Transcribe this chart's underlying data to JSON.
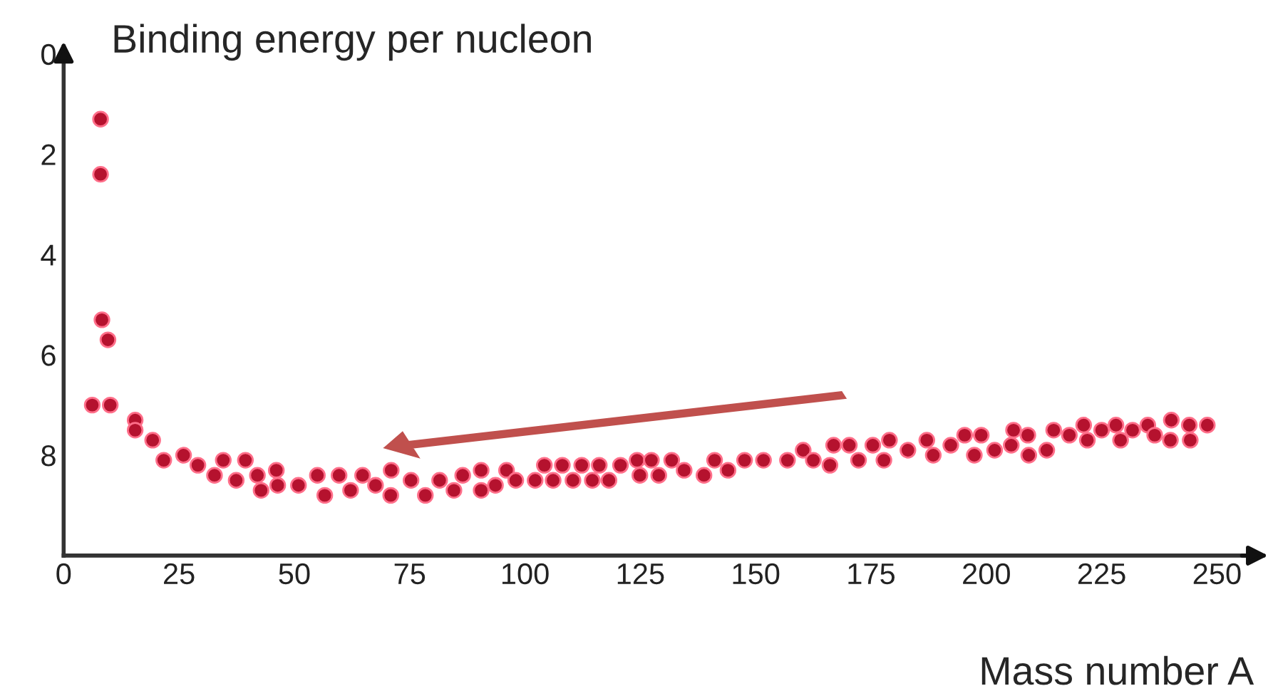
{
  "chart_data": {
    "type": "scatter",
    "xlabel": "Mass number A",
    "ylabel": "Binding energy per nucleon",
    "xlim": [
      0,
      258
    ],
    "xticks": [
      0,
      25,
      50,
      75,
      100,
      125,
      150,
      175,
      200,
      225,
      250
    ],
    "ylim": [
      10,
      0
    ],
    "yticks": [
      0,
      2,
      4,
      6,
      8
    ],
    "marker": "circle",
    "grid": false,
    "legend": false,
    "series": [
      {
        "color": "#b5122e",
        "x": [
          8,
          8,
          8.3,
          9.6,
          6.2,
          10.1,
          15.5,
          15.5,
          19.3,
          21.7,
          26,
          29.1,
          32.7,
          34.6,
          37.4,
          39.4,
          42,
          42.8,
          46.1,
          46.4,
          50.9,
          55,
          56.6,
          59.7,
          62.2,
          64.8,
          67.6,
          70.9,
          71,
          75.3,
          78.4,
          81.5,
          84.6,
          86.5,
          90.5,
          90.5,
          93.6,
          96,
          98,
          102.2,
          104.2,
          106.1,
          108.1,
          110.4,
          112.3,
          114.6,
          116.1,
          118.2,
          120.7,
          124.3,
          124.9,
          127.4,
          129,
          131.8,
          134.5,
          138.8,
          141.1,
          144,
          147.6,
          151.7,
          156.9,
          160.3,
          162.5,
          166.1,
          166.9,
          170.3,
          172.3,
          175.4,
          177.8,
          179,
          183,
          187.1,
          188.5,
          192.3,
          195.3,
          197.4,
          198.9,
          201.8,
          205.4,
          205.9,
          209,
          209.2,
          213.1,
          214.6,
          218,
          221.1,
          221.9,
          225,
          228.1,
          229.1,
          231.7,
          235,
          236.5,
          240.1,
          239.9,
          244,
          244.2,
          247.9
        ],
        "values": [
          1.3,
          2.4,
          5.3,
          5.7,
          7.0,
          7.0,
          7.3,
          7.5,
          7.7,
          8.1,
          8.0,
          8.2,
          8.4,
          8.1,
          8.5,
          8.1,
          8.4,
          8.7,
          8.3,
          8.6,
          8.6,
          8.4,
          8.8,
          8.4,
          8.7,
          8.4,
          8.6,
          8.8,
          8.3,
          8.5,
          8.8,
          8.5,
          8.7,
          8.4,
          8.3,
          8.7,
          8.6,
          8.3,
          8.5,
          8.5,
          8.2,
          8.5,
          8.2,
          8.5,
          8.2,
          8.5,
          8.2,
          8.5,
          8.2,
          8.1,
          8.4,
          8.1,
          8.4,
          8.1,
          8.3,
          8.4,
          8.1,
          8.3,
          8.1,
          8.1,
          8.1,
          7.9,
          8.1,
          8.2,
          7.8,
          7.8,
          8.1,
          7.8,
          8.1,
          7.7,
          7.9,
          7.7,
          8.0,
          7.8,
          7.6,
          8.0,
          7.6,
          7.9,
          7.8,
          7.5,
          7.6,
          8.0,
          7.9,
          7.5,
          7.6,
          7.4,
          7.7,
          7.5,
          7.4,
          7.7,
          7.5,
          7.4,
          7.6,
          7.3,
          7.7,
          7.4,
          7.7,
          7.4
        ]
      }
    ]
  }
}
